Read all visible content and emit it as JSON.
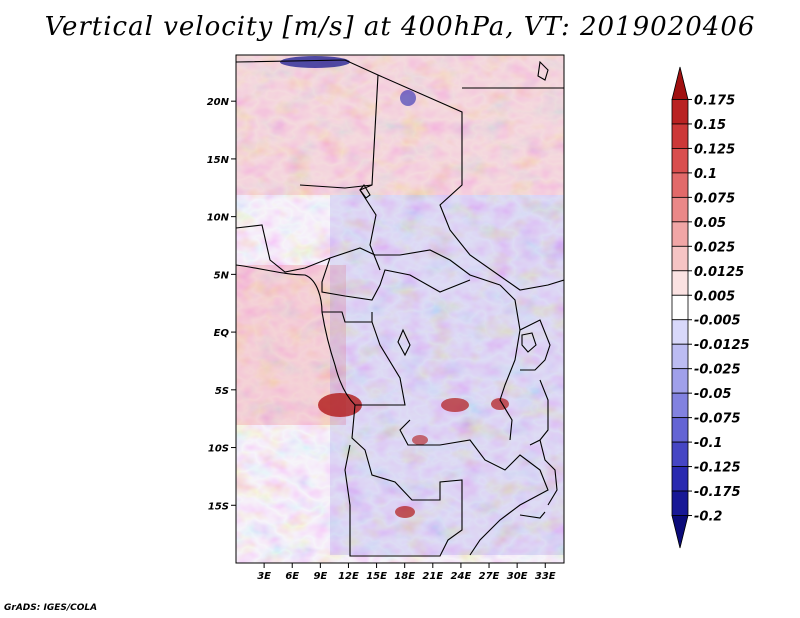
{
  "title": "Vertical velocity [m/s] at 400hPa, VT: 2019020406",
  "credit": "GrADS: IGES/COLA",
  "map": {
    "lon_range": [
      0,
      35
    ],
    "lat_range": [
      -20,
      24
    ],
    "lat_ticks": [
      {
        "value": 20,
        "label": "20N"
      },
      {
        "value": 15,
        "label": "15N"
      },
      {
        "value": 10,
        "label": "10N"
      },
      {
        "value": 5,
        "label": "5N"
      },
      {
        "value": 0,
        "label": "EQ"
      },
      {
        "value": -5,
        "label": "5S"
      },
      {
        "value": -10,
        "label": "10S"
      },
      {
        "value": -15,
        "label": "15S"
      }
    ],
    "lon_ticks": [
      {
        "value": 3,
        "label": "3E"
      },
      {
        "value": 6,
        "label": "6E"
      },
      {
        "value": 9,
        "label": "9E"
      },
      {
        "value": 12,
        "label": "12E"
      },
      {
        "value": 15,
        "label": "15E"
      },
      {
        "value": 18,
        "label": "18E"
      },
      {
        "value": 21,
        "label": "21E"
      },
      {
        "value": 24,
        "label": "24E"
      },
      {
        "value": 27,
        "label": "27E"
      },
      {
        "value": 30,
        "label": "30E"
      },
      {
        "value": 33,
        "label": "33E"
      }
    ]
  },
  "colorbar": {
    "labels": [
      "0.175",
      "0.15",
      "0.125",
      "0.1",
      "0.075",
      "0.05",
      "0.025",
      "0.0125",
      "0.005",
      "-0.005",
      "-0.0125",
      "-0.025",
      "-0.05",
      "-0.075",
      "-0.1",
      "-0.125",
      "-0.175",
      "-0.2"
    ],
    "colors": [
      "#a01010",
      "#b92222",
      "#cc3838",
      "#d94e4e",
      "#e26a6a",
      "#ea8888",
      "#f1a6a6",
      "#f6c4c4",
      "#fbe2e2",
      "#ffffff",
      "#d8d8fa",
      "#bcbcf2",
      "#a0a0ea",
      "#8282e0",
      "#6464d4",
      "#4646c4",
      "#2a2ab0",
      "#181896",
      "#0b0b7a"
    ]
  }
}
